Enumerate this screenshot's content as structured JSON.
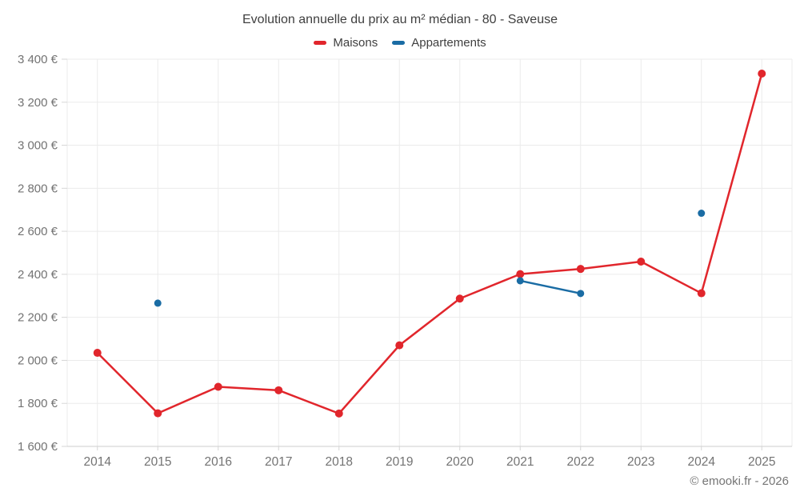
{
  "title": "Evolution annuelle du prix au m² médian - 80 - Saveuse",
  "footer": "© emooki.fr - 2026",
  "legend": {
    "items": [
      {
        "label": "Maisons",
        "color": "#e1262c"
      },
      {
        "label": "Appartements",
        "color": "#1a6ca4"
      }
    ]
  },
  "colors": {
    "grid": "#ebebeb",
    "axis_line": "#cccccc",
    "tick": "#d6d6d6",
    "axis_label": "#737373",
    "title_text": "#3f3f3f",
    "maisons": "#e1262c",
    "appartements": "#1a6ca4"
  },
  "chart_data": {
    "type": "line",
    "title": "Evolution annuelle du prix au m² médian - 80 - Saveuse",
    "categories": [
      "2014",
      "2015",
      "2016",
      "2017",
      "2018",
      "2019",
      "2020",
      "2021",
      "2022",
      "2023",
      "2024",
      "2025"
    ],
    "series": [
      {
        "name": "Maisons",
        "color": "#e1262c",
        "values": [
          2035,
          1754,
          1877,
          1861,
          1753,
          2070,
          2287,
          2401,
          2425,
          2459,
          2312,
          3333
        ]
      },
      {
        "name": "Appartements",
        "color": "#1a6ca4",
        "values": [
          null,
          2266,
          null,
          null,
          null,
          null,
          null,
          2370,
          2311,
          null,
          2684,
          null
        ]
      }
    ],
    "xlabel": "",
    "ylabel": "",
    "ylim": [
      1600,
      3400
    ],
    "y_tick_step": 200,
    "y_tick_labels": [
      "1 600 €",
      "1 800 €",
      "2 000 €",
      "2 200 €",
      "2 400 €",
      "2 600 €",
      "2 800 €",
      "3 000 €",
      "3 200 €",
      "3 400 €"
    ],
    "grid": true,
    "legend_position": "top"
  }
}
